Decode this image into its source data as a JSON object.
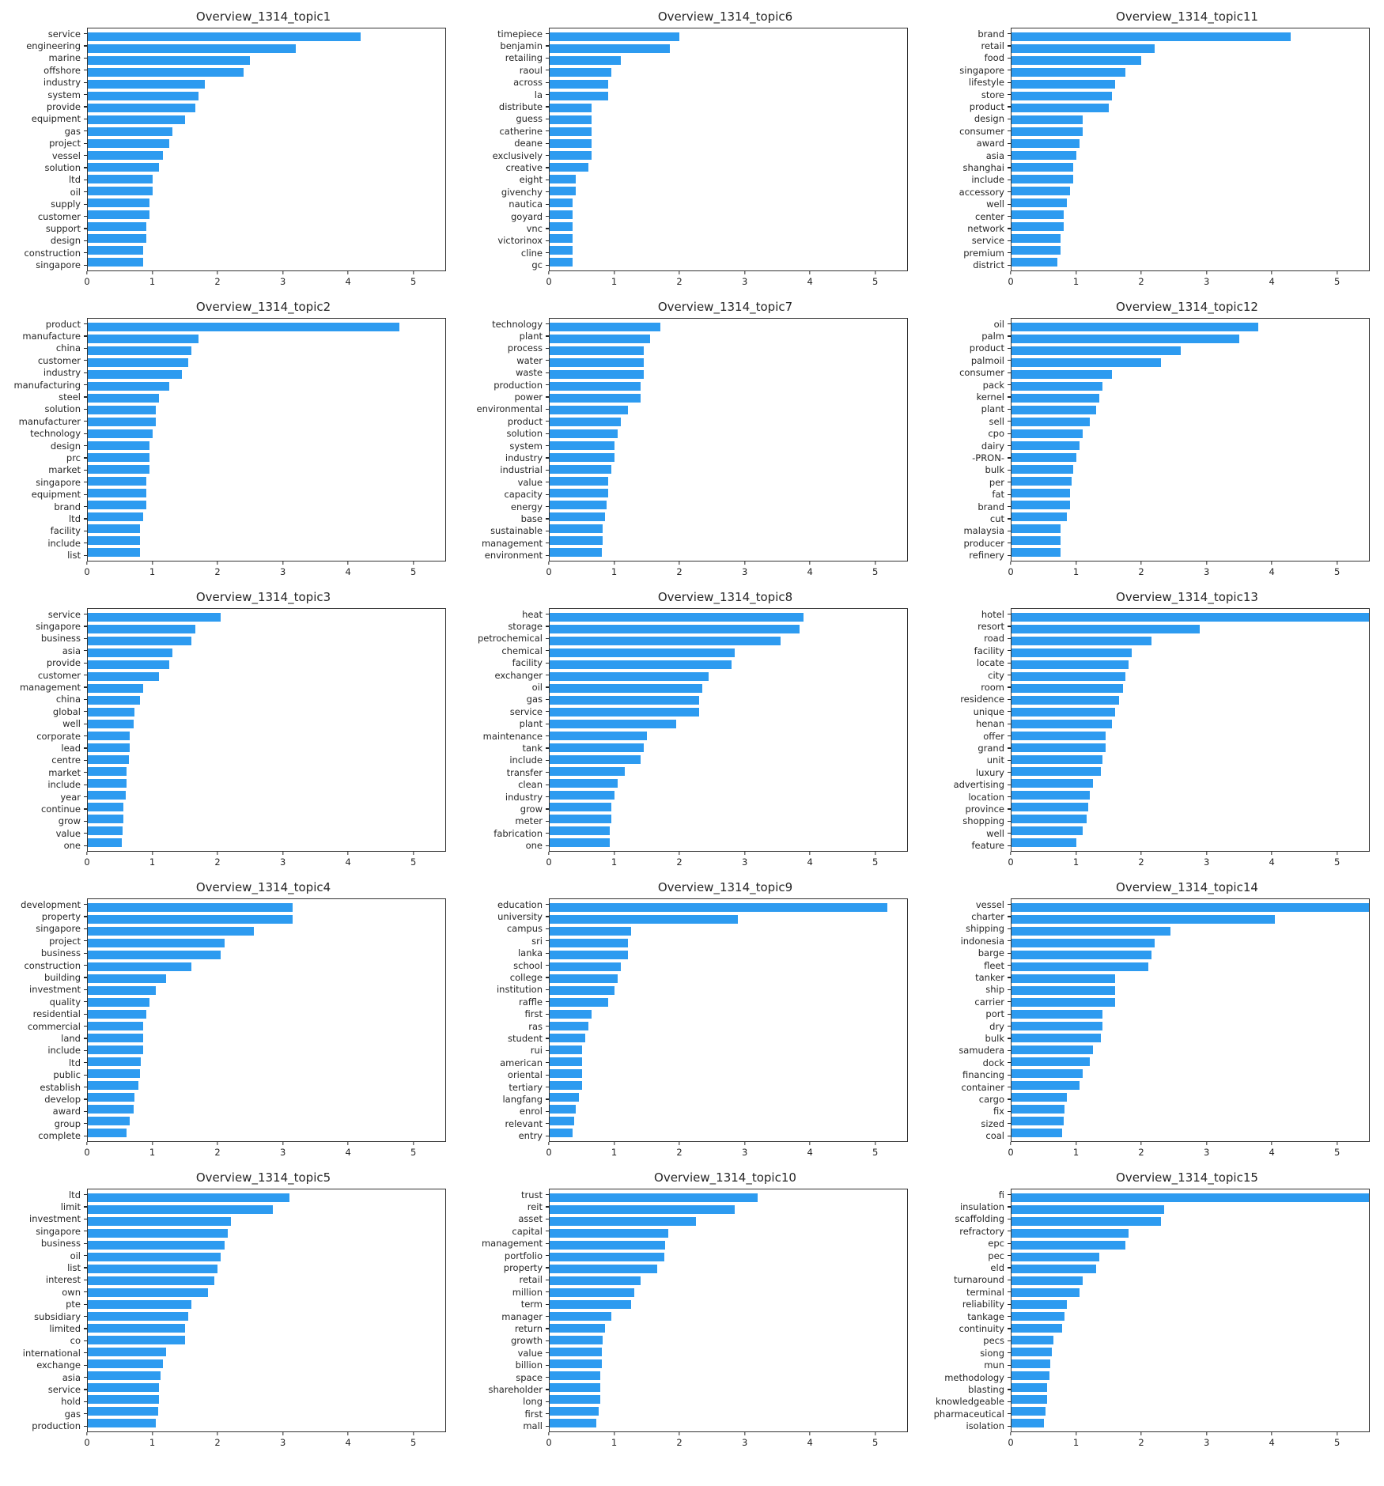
{
  "page": {
    "background": "#ffffff",
    "bar_color": "#2D9BF0"
  },
  "chart_data": [
    {
      "type": "bar",
      "orientation": "horizontal",
      "title": "Overview_1314_topic1",
      "xlim": [
        0,
        5.5
      ],
      "xticks": [
        0,
        1,
        2,
        3,
        4,
        5
      ],
      "categories": [
        "service",
        "engineering",
        "marine",
        "offshore",
        "industry",
        "system",
        "provide",
        "equipment",
        "gas",
        "project",
        "vessel",
        "solution",
        "ltd",
        "oil",
        "supply",
        "customer",
        "support",
        "design",
        "construction",
        "singapore"
      ],
      "values": [
        4.2,
        3.2,
        2.5,
        2.4,
        1.8,
        1.7,
        1.65,
        1.5,
        1.3,
        1.25,
        1.15,
        1.1,
        1.0,
        1.0,
        0.95,
        0.95,
        0.9,
        0.9,
        0.85,
        0.85
      ]
    },
    {
      "type": "bar",
      "orientation": "horizontal",
      "title": "Overview_1314_topic6",
      "xlim": [
        0,
        5.5
      ],
      "xticks": [
        0,
        1,
        2,
        3,
        4,
        5
      ],
      "categories": [
        "timepiece",
        "benjamin",
        "retailing",
        "raoul",
        "across",
        "la",
        "distribute",
        "guess",
        "catherine",
        "deane",
        "exclusively",
        "creative",
        "eight",
        "givenchy",
        "nautica",
        "goyard",
        "vnc",
        "victorinox",
        "cline",
        "gc"
      ],
      "values": [
        2.0,
        1.85,
        1.1,
        0.95,
        0.9,
        0.9,
        0.65,
        0.65,
        0.65,
        0.65,
        0.65,
        0.6,
        0.4,
        0.4,
        0.35,
        0.35,
        0.35,
        0.35,
        0.35,
        0.35
      ]
    },
    {
      "type": "bar",
      "orientation": "horizontal",
      "title": "Overview_1314_topic11",
      "xlim": [
        0,
        5.5
      ],
      "xticks": [
        0,
        1,
        2,
        3,
        4,
        5
      ],
      "categories": [
        "brand",
        "retail",
        "food",
        "singapore",
        "lifestyle",
        "store",
        "product",
        "design",
        "consumer",
        "award",
        "asia",
        "shanghai",
        "include",
        "accessory",
        "well",
        "center",
        "network",
        "service",
        "premium",
        "district"
      ],
      "values": [
        4.3,
        2.2,
        2.0,
        1.75,
        1.6,
        1.55,
        1.5,
        1.1,
        1.1,
        1.05,
        1.0,
        0.95,
        0.95,
        0.9,
        0.85,
        0.8,
        0.8,
        0.75,
        0.75,
        0.7
      ]
    },
    {
      "type": "bar",
      "orientation": "horizontal",
      "title": "Overview_1314_topic2",
      "xlim": [
        0,
        5.5
      ],
      "xticks": [
        0,
        1,
        2,
        3,
        4,
        5
      ],
      "categories": [
        "product",
        "manufacture",
        "china",
        "customer",
        "industry",
        "manufacturing",
        "steel",
        "solution",
        "manufacturer",
        "technology",
        "design",
        "prc",
        "market",
        "singapore",
        "equipment",
        "brand",
        "ltd",
        "facility",
        "include",
        "list"
      ],
      "values": [
        4.8,
        1.7,
        1.6,
        1.55,
        1.45,
        1.25,
        1.1,
        1.05,
        1.05,
        1.0,
        0.95,
        0.95,
        0.95,
        0.9,
        0.9,
        0.9,
        0.85,
        0.8,
        0.8,
        0.8
      ]
    },
    {
      "type": "bar",
      "orientation": "horizontal",
      "title": "Overview_1314_topic7",
      "xlim": [
        0,
        5.5
      ],
      "xticks": [
        0,
        1,
        2,
        3,
        4,
        5
      ],
      "categories": [
        "technology",
        "plant",
        "process",
        "water",
        "waste",
        "production",
        "power",
        "environmental",
        "product",
        "solution",
        "system",
        "industry",
        "industrial",
        "value",
        "capacity",
        "energy",
        "base",
        "sustainable",
        "management",
        "environment"
      ],
      "values": [
        1.7,
        1.55,
        1.45,
        1.45,
        1.45,
        1.4,
        1.4,
        1.2,
        1.1,
        1.05,
        1.0,
        1.0,
        0.95,
        0.9,
        0.9,
        0.88,
        0.85,
        0.82,
        0.82,
        0.8
      ]
    },
    {
      "type": "bar",
      "orientation": "horizontal",
      "title": "Overview_1314_topic12",
      "xlim": [
        0,
        5.5
      ],
      "xticks": [
        0,
        1,
        2,
        3,
        4,
        5
      ],
      "categories": [
        "oil",
        "palm",
        "product",
        "palmoil",
        "consumer",
        "pack",
        "kernel",
        "plant",
        "sell",
        "cpo",
        "dairy",
        "-PRON-",
        "bulk",
        "per",
        "fat",
        "brand",
        "cut",
        "malaysia",
        "producer",
        "refinery"
      ],
      "values": [
        3.8,
        3.5,
        2.6,
        2.3,
        1.55,
        1.4,
        1.35,
        1.3,
        1.2,
        1.1,
        1.05,
        1.0,
        0.95,
        0.92,
        0.9,
        0.9,
        0.85,
        0.75,
        0.75,
        0.75
      ]
    },
    {
      "type": "bar",
      "orientation": "horizontal",
      "title": "Overview_1314_topic3",
      "xlim": [
        0,
        5.5
      ],
      "xticks": [
        0,
        1,
        2,
        3,
        4,
        5
      ],
      "categories": [
        "service",
        "singapore",
        "business",
        "asia",
        "provide",
        "customer",
        "management",
        "china",
        "global",
        "well",
        "corporate",
        "lead",
        "centre",
        "market",
        "include",
        "year",
        "continue",
        "grow",
        "value",
        "one"
      ],
      "values": [
        2.05,
        1.65,
        1.6,
        1.3,
        1.25,
        1.1,
        0.85,
        0.8,
        0.72,
        0.7,
        0.65,
        0.65,
        0.63,
        0.6,
        0.6,
        0.58,
        0.55,
        0.55,
        0.53,
        0.52
      ]
    },
    {
      "type": "bar",
      "orientation": "horizontal",
      "title": "Overview_1314_topic8",
      "xlim": [
        0,
        5.5
      ],
      "xticks": [
        0,
        1,
        2,
        3,
        4,
        5
      ],
      "categories": [
        "heat",
        "storage",
        "petrochemical",
        "chemical",
        "facility",
        "exchanger",
        "oil",
        "gas",
        "service",
        "plant",
        "maintenance",
        "tank",
        "include",
        "transfer",
        "clean",
        "industry",
        "grow",
        "meter",
        "fabrication",
        "one"
      ],
      "values": [
        3.9,
        3.85,
        3.55,
        2.85,
        2.8,
        2.45,
        2.35,
        2.3,
        2.3,
        1.95,
        1.5,
        1.45,
        1.4,
        1.15,
        1.05,
        1.0,
        0.95,
        0.95,
        0.92,
        0.92
      ]
    },
    {
      "type": "bar",
      "orientation": "horizontal",
      "title": "Overview_1314_topic13",
      "xlim": [
        0,
        5.5
      ],
      "xticks": [
        0,
        1,
        2,
        3,
        4,
        5
      ],
      "categories": [
        "hotel",
        "resort",
        "road",
        "facility",
        "locate",
        "city",
        "room",
        "residence",
        "unique",
        "henan",
        "offer",
        "grand",
        "unit",
        "luxury",
        "advertising",
        "location",
        "province",
        "shopping",
        "well",
        "feature"
      ],
      "values": [
        5.5,
        2.9,
        2.15,
        1.85,
        1.8,
        1.75,
        1.72,
        1.65,
        1.6,
        1.55,
        1.45,
        1.45,
        1.4,
        1.38,
        1.25,
        1.2,
        1.18,
        1.15,
        1.1,
        1.0
      ]
    },
    {
      "type": "bar",
      "orientation": "horizontal",
      "title": "Overview_1314_topic4",
      "xlim": [
        0,
        5.5
      ],
      "xticks": [
        0,
        1,
        2,
        3,
        4,
        5
      ],
      "categories": [
        "development",
        "property",
        "singapore",
        "project",
        "business",
        "construction",
        "building",
        "investment",
        "quality",
        "residential",
        "commercial",
        "land",
        "include",
        "ltd",
        "public",
        "establish",
        "develop",
        "award",
        "group",
        "complete"
      ],
      "values": [
        3.15,
        3.15,
        2.55,
        2.1,
        2.05,
        1.6,
        1.2,
        1.05,
        0.95,
        0.9,
        0.85,
        0.85,
        0.85,
        0.82,
        0.8,
        0.78,
        0.72,
        0.7,
        0.65,
        0.6
      ]
    },
    {
      "type": "bar",
      "orientation": "horizontal",
      "title": "Overview_1314_topic9",
      "xlim": [
        0,
        5.5
      ],
      "xticks": [
        0,
        1,
        2,
        3,
        4,
        5
      ],
      "categories": [
        "education",
        "university",
        "campus",
        "sri",
        "lanka",
        "school",
        "college",
        "institution",
        "raffle",
        "first",
        "ras",
        "student",
        "rui",
        "american",
        "oriental",
        "tertiary",
        "langfang",
        "enrol",
        "relevant",
        "entry"
      ],
      "values": [
        5.2,
        2.9,
        1.25,
        1.2,
        1.2,
        1.1,
        1.05,
        1.0,
        0.9,
        0.65,
        0.6,
        0.55,
        0.5,
        0.5,
        0.5,
        0.5,
        0.45,
        0.4,
        0.38,
        0.35
      ]
    },
    {
      "type": "bar",
      "orientation": "horizontal",
      "title": "Overview_1314_topic14",
      "xlim": [
        0,
        5.5
      ],
      "xticks": [
        0,
        1,
        2,
        3,
        4,
        5
      ],
      "categories": [
        "vessel",
        "charter",
        "shipping",
        "indonesia",
        "barge",
        "fleet",
        "tanker",
        "ship",
        "carrier",
        "port",
        "dry",
        "bulk",
        "samudera",
        "dock",
        "financing",
        "container",
        "cargo",
        "fix",
        "sized",
        "coal"
      ],
      "values": [
        5.5,
        4.05,
        2.45,
        2.2,
        2.15,
        2.1,
        1.6,
        1.6,
        1.6,
        1.4,
        1.4,
        1.38,
        1.25,
        1.2,
        1.1,
        1.05,
        0.85,
        0.82,
        0.8,
        0.78
      ]
    },
    {
      "type": "bar",
      "orientation": "horizontal",
      "title": "Overview_1314_topic5",
      "xlim": [
        0,
        5.5
      ],
      "xticks": [
        0,
        1,
        2,
        3,
        4,
        5
      ],
      "categories": [
        "ltd",
        "limit",
        "investment",
        "singapore",
        "business",
        "oil",
        "list",
        "interest",
        "own",
        "pte",
        "subsidiary",
        "limited",
        "co",
        "international",
        "exchange",
        "asia",
        "service",
        "hold",
        "gas",
        "production"
      ],
      "values": [
        3.1,
        2.85,
        2.2,
        2.15,
        2.1,
        2.05,
        2.0,
        1.95,
        1.85,
        1.6,
        1.55,
        1.5,
        1.5,
        1.2,
        1.15,
        1.12,
        1.1,
        1.1,
        1.08,
        1.05
      ]
    },
    {
      "type": "bar",
      "orientation": "horizontal",
      "title": "Overview_1314_topic10",
      "xlim": [
        0,
        5.5
      ],
      "xticks": [
        0,
        1,
        2,
        3,
        4,
        5
      ],
      "categories": [
        "trust",
        "reit",
        "asset",
        "capital",
        "management",
        "portfolio",
        "property",
        "retail",
        "million",
        "term",
        "manager",
        "return",
        "growth",
        "value",
        "billion",
        "space",
        "shareholder",
        "long",
        "first",
        "mall"
      ],
      "values": [
        3.2,
        2.85,
        2.25,
        1.82,
        1.78,
        1.76,
        1.65,
        1.4,
        1.3,
        1.25,
        0.95,
        0.85,
        0.82,
        0.8,
        0.8,
        0.78,
        0.78,
        0.78,
        0.75,
        0.72
      ]
    },
    {
      "type": "bar",
      "orientation": "horizontal",
      "title": "Overview_1314_topic15",
      "xlim": [
        0,
        5.5
      ],
      "xticks": [
        0,
        1,
        2,
        3,
        4,
        5
      ],
      "categories": [
        "fi",
        "insulation",
        "scaffolding",
        "refractory",
        "epc",
        "pec",
        "eld",
        "turnaround",
        "terminal",
        "reliability",
        "tankage",
        "continuity",
        "pecs",
        "siong",
        "mun",
        "methodology",
        "blasting",
        "knowledgeable",
        "pharmaceutical",
        "isolation"
      ],
      "values": [
        5.5,
        2.35,
        2.3,
        1.8,
        1.75,
        1.35,
        1.3,
        1.1,
        1.05,
        0.85,
        0.82,
        0.78,
        0.65,
        0.62,
        0.6,
        0.58,
        0.55,
        0.55,
        0.52,
        0.5
      ]
    }
  ]
}
